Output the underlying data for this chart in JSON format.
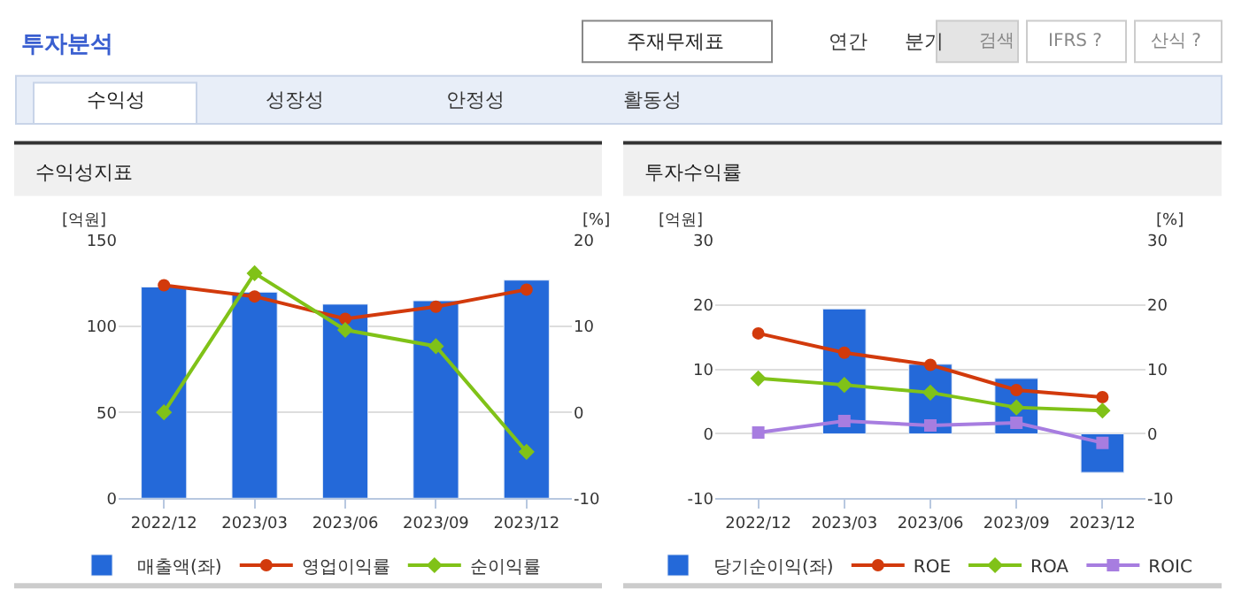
{
  "chart_data": [
    {
      "type": "bar",
      "title": "수익성지표",
      "ylabel": "[억원]",
      "y2label": "[%]",
      "categories": [
        "2022/12",
        "2023/03",
        "2023/06",
        "2023/09",
        "2023/12"
      ],
      "series": [
        {
          "name": "매출액(좌)",
          "color": "#2469d9",
          "values": [
            123,
            120,
            113,
            115,
            127
          ]
        },
        {
          "name": "영업이익률",
          "type": "line",
          "axis": "y2",
          "color": "#d23a0c",
          "marker": "circle",
          "values": [
            14.8,
            13.5,
            10.9,
            12.3,
            14.3
          ]
        },
        {
          "name": "순이익률",
          "type": "line",
          "axis": "y2",
          "color": "#80c218",
          "marker": "diamond",
          "values": [
            0.0,
            16.2,
            9.6,
            7.7,
            -4.6
          ]
        }
      ],
      "ylim": [
        0,
        150
      ],
      "yticks": [
        0,
        50,
        100,
        150
      ],
      "y2lim": [
        -10,
        20
      ],
      "y2ticks": [
        -10,
        0,
        10,
        20
      ],
      "grid": "y",
      "legend": "bottom",
      "annotations": [
        "투자분석",
        "주재무제표",
        "연간",
        "분기",
        "검색",
        "IFRS ?",
        "산식 ?",
        "수익성",
        "성장성",
        "안정성",
        "활동성"
      ]
    },
    {
      "type": "bar",
      "title": "투자수익률",
      "ylabel": "[억원]",
      "y2label": "[%]",
      "categories": [
        "2022/12",
        "2023/03",
        "2023/06",
        "2023/09",
        "2023/12"
      ],
      "series": [
        {
          "name": "당기순이익(좌)",
          "color": "#2469d9",
          "values": [
            null,
            19.4,
            10.8,
            8.6,
            -6.0
          ]
        },
        {
          "name": "ROE",
          "type": "line",
          "axis": "y2",
          "color": "#d23a0c",
          "marker": "circle",
          "values": [
            15.6,
            12.6,
            10.7,
            6.8,
            5.7
          ]
        },
        {
          "name": "ROA",
          "type": "line",
          "axis": "y2",
          "color": "#80c218",
          "marker": "diamond",
          "values": [
            8.6,
            7.6,
            6.4,
            4.1,
            3.6
          ]
        },
        {
          "name": "ROIC",
          "type": "line",
          "axis": "y2",
          "color": "#a77de0",
          "marker": "square",
          "values": [
            0.2,
            2.0,
            1.3,
            1.7,
            -1.4
          ]
        }
      ],
      "ylim": [
        -10,
        30
      ],
      "yticks": [
        -10,
        0,
        10,
        20,
        30
      ],
      "y2lim": [
        -10,
        30
      ],
      "y2ticks": [
        -10,
        0,
        10,
        20,
        30
      ],
      "grid": "y",
      "legend": "bottom"
    }
  ]
}
